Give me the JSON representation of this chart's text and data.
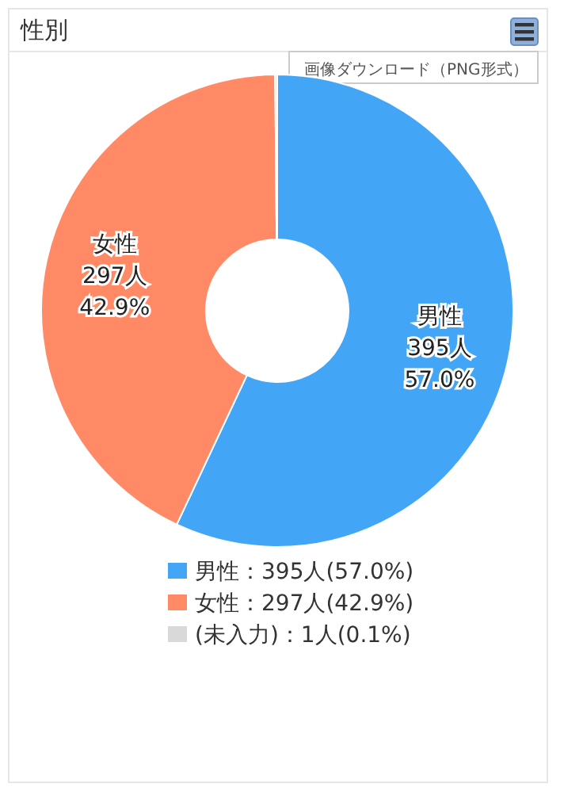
{
  "chart_data": {
    "type": "donut",
    "title": "性別",
    "categories": [
      "男性：395人(57.0%)",
      "女性：297人(42.9%)",
      "(未入力)：1人(0.1%)"
    ],
    "values": [
      395,
      297,
      1
    ],
    "colors": [
      "#42a5f5",
      "#ff8a65",
      "#d9d9d9"
    ],
    "value_labels": [
      "男性\n395人\n57.0%",
      "女性\n297人\n42.9%",
      null
    ],
    "legend": "bottom",
    "annotations": [
      "画像ダウンロード（PNG形式）"
    ]
  }
}
